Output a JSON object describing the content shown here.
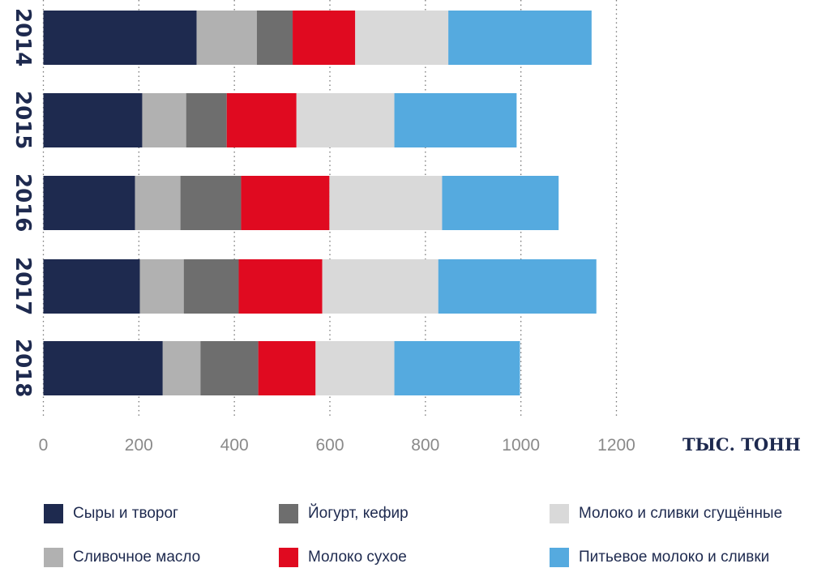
{
  "chart_data": {
    "type": "bar",
    "orientation": "horizontal",
    "stacked": true,
    "categories": [
      "2014",
      "2015",
      "2016",
      "2017",
      "2018"
    ],
    "unit_label": "ТЫС. ТОНН",
    "xlim": [
      0,
      1200
    ],
    "xticks": [
      "0",
      "200",
      "400",
      "600",
      "800",
      "1000",
      "1200"
    ],
    "grid": "vertical dotted",
    "legend_position": "bottom",
    "series": [
      {
        "name": "Сыры и творог",
        "color": "#1e2a4f",
        "values": [
          321,
          207,
          192,
          202,
          250
        ]
      },
      {
        "name": "Сливочное масло",
        "color": "#b1b1b1",
        "values": [
          126,
          92,
          95,
          92,
          79
        ]
      },
      {
        "name": "Йогурт, кефир",
        "color": "#6e6e6e",
        "values": [
          75,
          85,
          127,
          115,
          121
        ]
      },
      {
        "name": "Молоко сухое",
        "color": "#e00a20",
        "values": [
          131,
          146,
          185,
          175,
          120
        ]
      },
      {
        "name": "Молоко и сливки сгущённые",
        "color": "#d9d9d9",
        "values": [
          195,
          205,
          236,
          243,
          165
        ]
      },
      {
        "name": "Питьевое молоко и сливки",
        "color": "#55aadf",
        "values": [
          300,
          256,
          244,
          331,
          263
        ]
      }
    ]
  }
}
